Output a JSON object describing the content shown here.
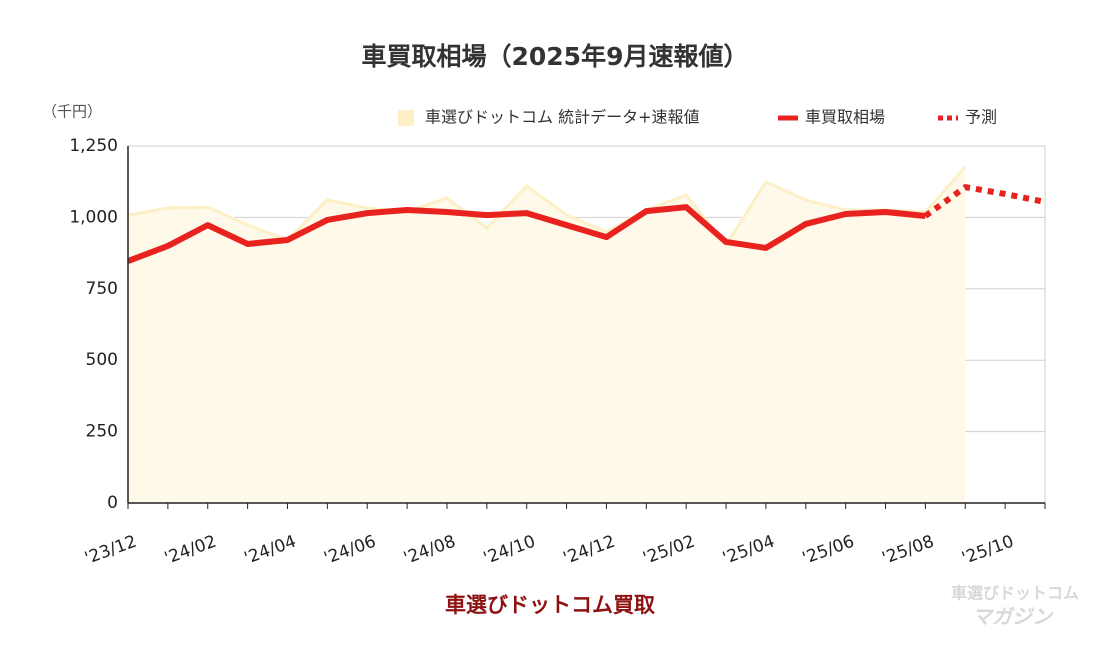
{
  "chart_data": {
    "type": "line",
    "title": "車買取相場（2025年9月速報値）",
    "y_unit": "（千円）",
    "x_label": "車選びドットコム買取",
    "watermark": [
      "車選びドットコム",
      "マガジン"
    ],
    "categories": [
      "'23/12",
      null,
      "'24/02",
      null,
      "'24/04",
      null,
      "'24/06",
      null,
      "'24/08",
      null,
      "'24/10",
      null,
      "'24/12",
      null,
      "'25/02",
      null,
      "'25/04",
      null,
      "'25/06",
      null,
      "'25/08",
      null,
      "'25/10",
      null
    ],
    "series": [
      {
        "name": "車選びドットコム 統計データ+速報値",
        "style": "area",
        "color": "#fdf0c6",
        "values": [
          1008,
          1033,
          1036,
          973,
          921,
          1061,
          1033,
          1019,
          1068,
          963,
          1110,
          1008,
          949,
          1026,
          1078,
          903,
          1124,
          1061,
          1026,
          1026,
          1019,
          1176,
          null,
          null
        ]
      },
      {
        "name": "車買取相場",
        "style": "solid",
        "color": "#e8221e",
        "values": [
          847,
          900,
          973,
          907,
          921,
          991,
          1015,
          1026,
          1019,
          1008,
          1015,
          973,
          931,
          1022,
          1036,
          914,
          893,
          977,
          1012,
          1019,
          1005,
          null,
          null,
          null
        ]
      },
      {
        "name": "予測",
        "style": "dotted",
        "color": "#e8221e",
        "values": [
          null,
          null,
          null,
          null,
          null,
          null,
          null,
          null,
          null,
          null,
          null,
          null,
          null,
          null,
          null,
          null,
          null,
          null,
          null,
          null,
          1005,
          1106,
          1082,
          1054
        ]
      }
    ],
    "ylim": [
      0,
      1250
    ],
    "yticks": [
      0,
      250,
      500,
      750,
      {
        "value": 1000,
        "label": "1,000"
      },
      {
        "value": 1250,
        "label": "1,250"
      }
    ],
    "grid": true,
    "legend": "top-right"
  }
}
